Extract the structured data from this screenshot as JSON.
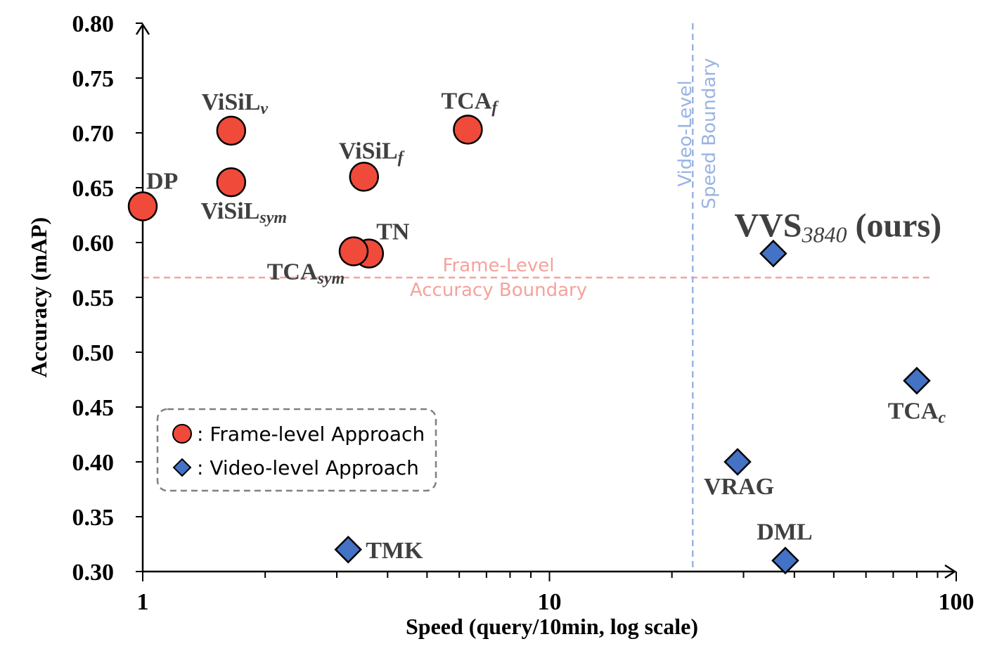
{
  "colors": {
    "frame": "#f04a3a",
    "video": "#4472c4",
    "frame_boundary": "#f4a39c",
    "video_boundary": "#9ab4e2"
  },
  "chart_data": {
    "type": "scatter",
    "xlabel": "Speed (query/10min, log scale)",
    "ylabel": "Accuracy (mAP)",
    "xscale": "log",
    "xlim": [
      1,
      100
    ],
    "ylim": [
      0.3,
      0.8
    ],
    "x_ticks": [
      "1",
      "10",
      "100"
    ],
    "y_ticks": [
      "0.30",
      "0.35",
      "0.40",
      "0.45",
      "0.50",
      "0.55",
      "0.60",
      "0.65",
      "0.70",
      "0.75",
      "0.80"
    ],
    "grid": false,
    "legend": {
      "placement": "bottom-left",
      "entries": [
        {
          "marker": "circle",
          "label": ": Frame-level Approach"
        },
        {
          "marker": "diamond",
          "label": ": Video-level  Approach"
        }
      ]
    },
    "series": [
      {
        "marker": "circle",
        "points": [
          {
            "label": "DP",
            "sub": "",
            "x": 1.0,
            "y": 0.633
          },
          {
            "label": "ViSiL",
            "sub": "v",
            "x": 1.65,
            "y": 0.702
          },
          {
            "label": "ViSiL",
            "sub": "sym",
            "x": 1.65,
            "y": 0.655
          },
          {
            "label": "ViSiL",
            "sub": "f",
            "x": 3.5,
            "y": 0.66
          },
          {
            "label": "TCA",
            "sub": "f",
            "x": 6.3,
            "y": 0.703
          },
          {
            "label": "TN",
            "sub": "",
            "x": 3.6,
            "y": 0.59
          },
          {
            "label": "TCA",
            "sub": "sym",
            "x": 3.3,
            "y": 0.592
          }
        ]
      },
      {
        "marker": "diamond",
        "points": [
          {
            "label": "VVS",
            "sub": "3840",
            "suffix": " (ours)",
            "x": 35.5,
            "y": 0.59
          },
          {
            "label": "TCA",
            "sub": "c",
            "x": 80,
            "y": 0.474
          },
          {
            "label": "VRAG",
            "sub": "",
            "x": 29,
            "y": 0.4
          },
          {
            "label": "DML",
            "sub": "",
            "x": 38,
            "y": 0.31
          },
          {
            "label": "TMK",
            "sub": "",
            "x": 3.2,
            "y": 0.32
          }
        ]
      }
    ],
    "annotations": [
      {
        "orientation": "horizontal",
        "y": 0.568,
        "lines": [
          "Frame-Level",
          "Accuracy Boundary"
        ]
      },
      {
        "orientation": "vertical",
        "x": 22.5,
        "lines": [
          "Video-Level",
          "Speed Boundary"
        ]
      }
    ]
  }
}
